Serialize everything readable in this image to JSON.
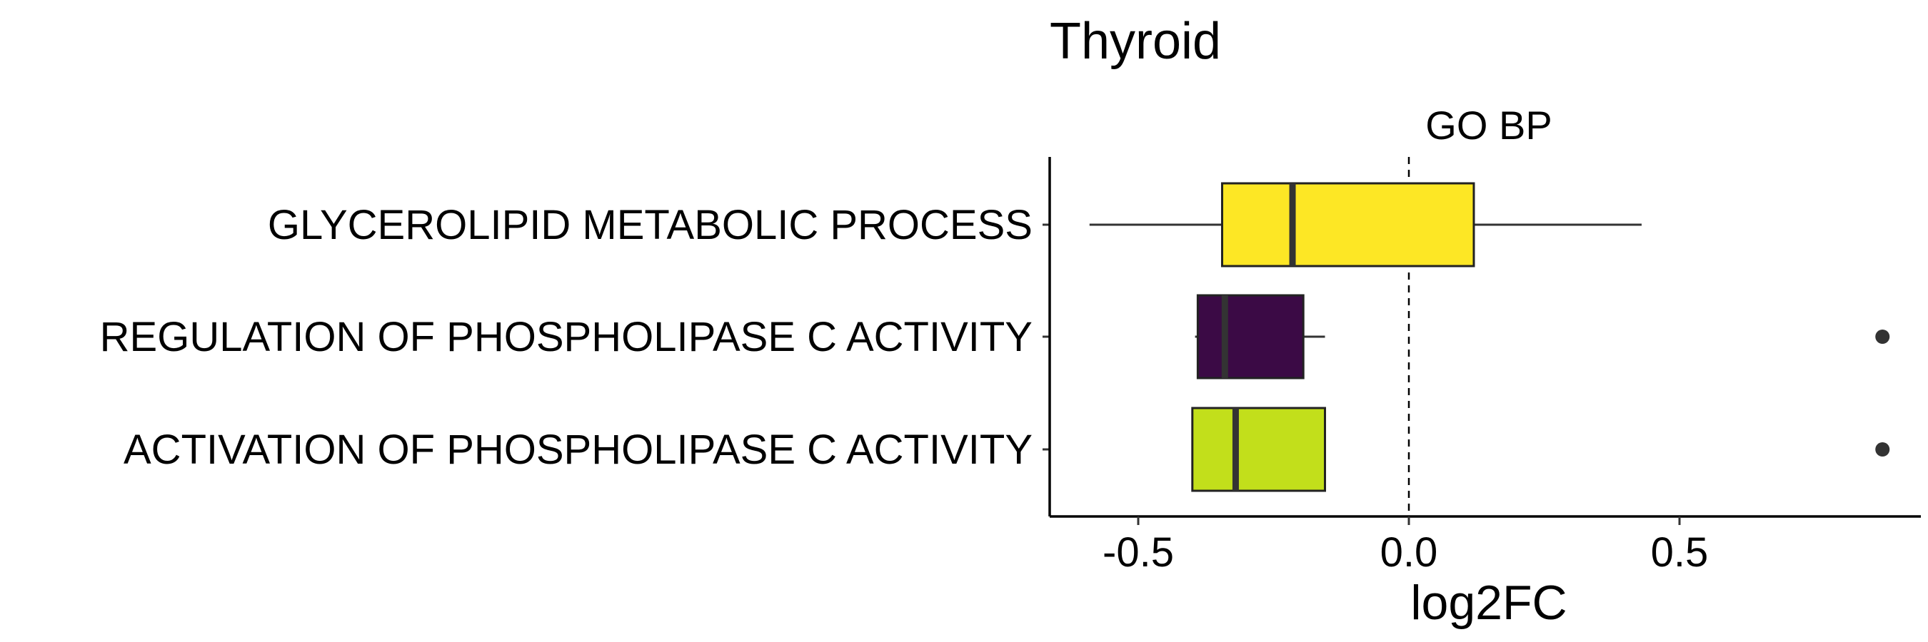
{
  "chart_data": {
    "type": "boxplot",
    "title": "Thyroid",
    "facet_label": "GO BP",
    "xlabel": "log2FC",
    "ylabel": "",
    "xlim": [
      -0.65,
      0.95
    ],
    "xticks": [
      -0.5,
      0.0,
      0.5
    ],
    "xtick_labels": [
      "-0.5",
      "0.0",
      "0.5"
    ],
    "reference_line": {
      "x": 0.0,
      "style": "dashed"
    },
    "grid": false,
    "legend": "none",
    "categories": [
      {
        "label": "GLYCEROLIPID METABOLIC PROCESS",
        "color": "#FDE725",
        "whisker_low": -0.59,
        "q1": -0.345,
        "median": -0.215,
        "q3": 0.12,
        "whisker_high": 0.43,
        "outliers": []
      },
      {
        "label": "REGULATION OF PHOSPHOLIPASE C ACTIVITY",
        "color": "#3B0A45",
        "whisker_low": -0.395,
        "q1": -0.39,
        "median": -0.34,
        "q3": -0.195,
        "whisker_high": -0.155,
        "outliers": [
          0.875
        ]
      },
      {
        "label": "ACTIVATION OF PHOSPHOLIPASE C ACTIVITY",
        "color": "#C2DF1B",
        "whisker_low": -0.4,
        "q1": -0.4,
        "median": -0.32,
        "q3": -0.155,
        "whisker_high": -0.155,
        "outliers": [
          0.875
        ]
      }
    ]
  }
}
